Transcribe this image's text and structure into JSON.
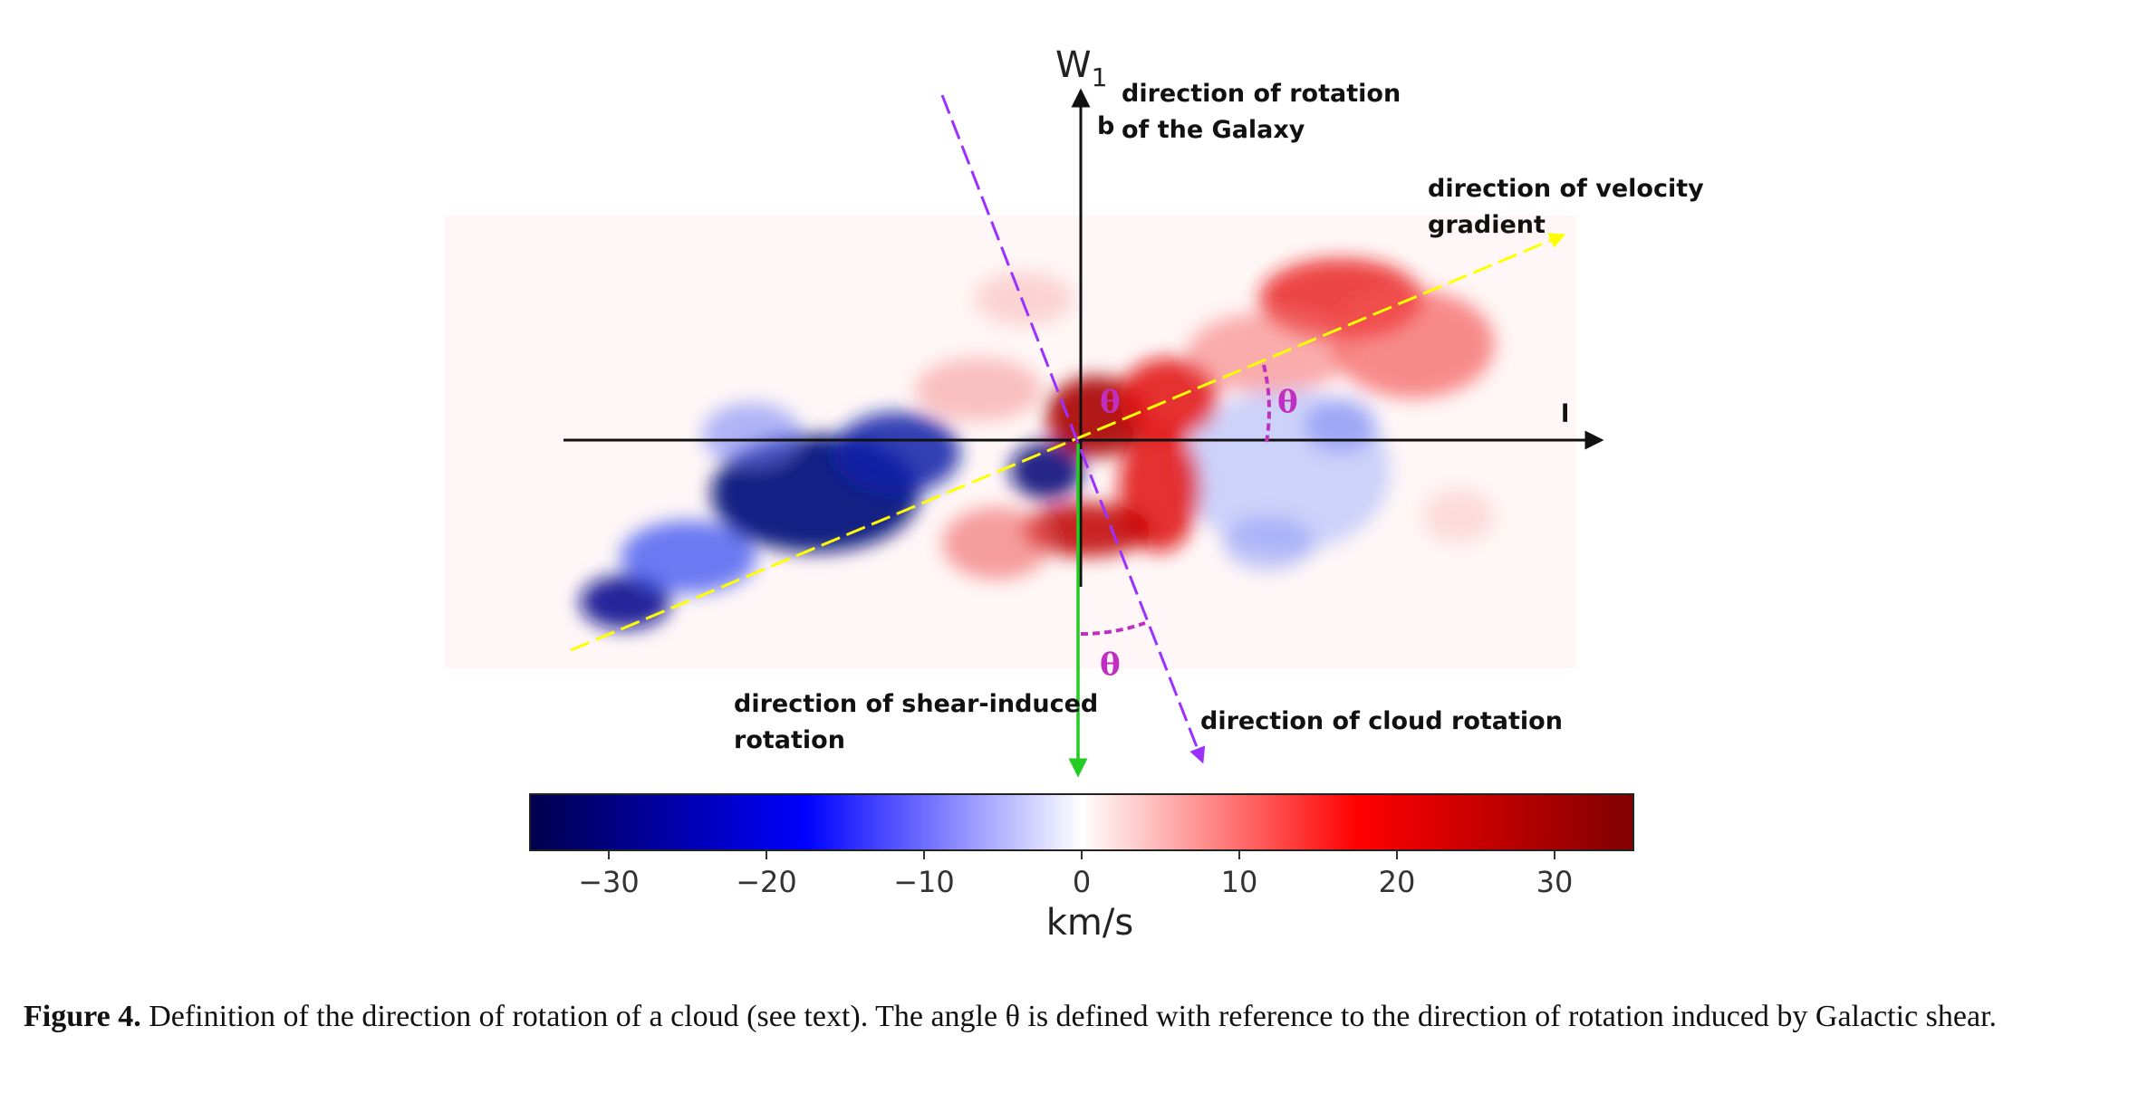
{
  "figure": {
    "axes": {
      "vertical_label_main": "W",
      "vertical_label_sub": "1",
      "vertical_label_b": "b",
      "horizontal_label": "l"
    },
    "annotations": {
      "rotation_galaxy_line1": "direction of rotation",
      "rotation_galaxy_line2": "of the Galaxy",
      "velocity_gradient_line1": "direction of velocity",
      "velocity_gradient_line2": "gradient",
      "shear_rotation_line1": "direction of shear-induced",
      "shear_rotation_line2": "rotation",
      "cloud_rotation": "direction of cloud rotation",
      "theta": "θ"
    },
    "colorbar": {
      "ticks": [
        "−30",
        "−20",
        "−10",
        "0",
        "10",
        "20",
        "30"
      ],
      "tick_values": [
        -30,
        -20,
        -10,
        0,
        10,
        20,
        30
      ],
      "range": [
        -35,
        35
      ],
      "unit": "km/s",
      "colormap": "seismic"
    },
    "colors": {
      "velocity_gradient_line": "#ffff00",
      "cloud_rotation_line": "#9b30ff",
      "shear_rotation_arrow": "#22cc22",
      "theta": "#c030c0",
      "axes": "#111111"
    }
  },
  "caption": {
    "label": "Figure 4.",
    "text": " Definition of the direction of rotation of a cloud (see text). The angle θ is defined with reference to the direction of rotation induced by Galactic shear."
  }
}
